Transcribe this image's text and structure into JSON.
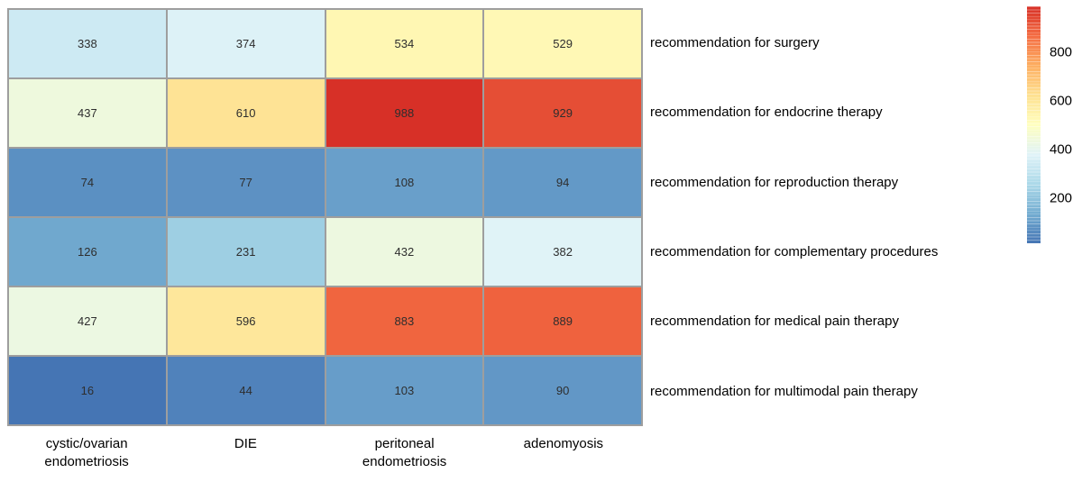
{
  "page": {
    "background": "#ffffff"
  },
  "chart_data": {
    "type": "heatmap",
    "title": "",
    "rows": [
      "recommendation for surgery",
      "recommendation for endocrine therapy",
      "recommendation for reproduction therapy",
      "recommendation for complementary procedures",
      "recommendation for medical pain therapy",
      "recommendation for multimodal pain therapy"
    ],
    "columns": [
      "cystic/ovarian\nendometriosis",
      "DIE",
      "peritoneal\nendometriosis",
      "adenomyosis"
    ],
    "values": [
      [
        338,
        374,
        534,
        529
      ],
      [
        437,
        610,
        988,
        929
      ],
      [
        74,
        77,
        108,
        94
      ],
      [
        126,
        231,
        432,
        382
      ],
      [
        427,
        596,
        883,
        889
      ],
      [
        16,
        44,
        103,
        90
      ]
    ],
    "color_scale": {
      "name": "RdYlBu_r",
      "vmin": 16,
      "vmax": 988,
      "ticks": [
        200,
        400,
        600,
        800
      ],
      "stops": [
        "#4575b4",
        "#74add1",
        "#abd9e9",
        "#e0f3f8",
        "#ffffbf",
        "#fee090",
        "#fdae61",
        "#f46d43",
        "#d73027"
      ]
    },
    "legend_position": "right",
    "grid": true
  },
  "style": {
    "grid_line_color": "#9e9e9e",
    "cell_text_color": "#2e2e2e",
    "label_text_color": "#000000"
  }
}
